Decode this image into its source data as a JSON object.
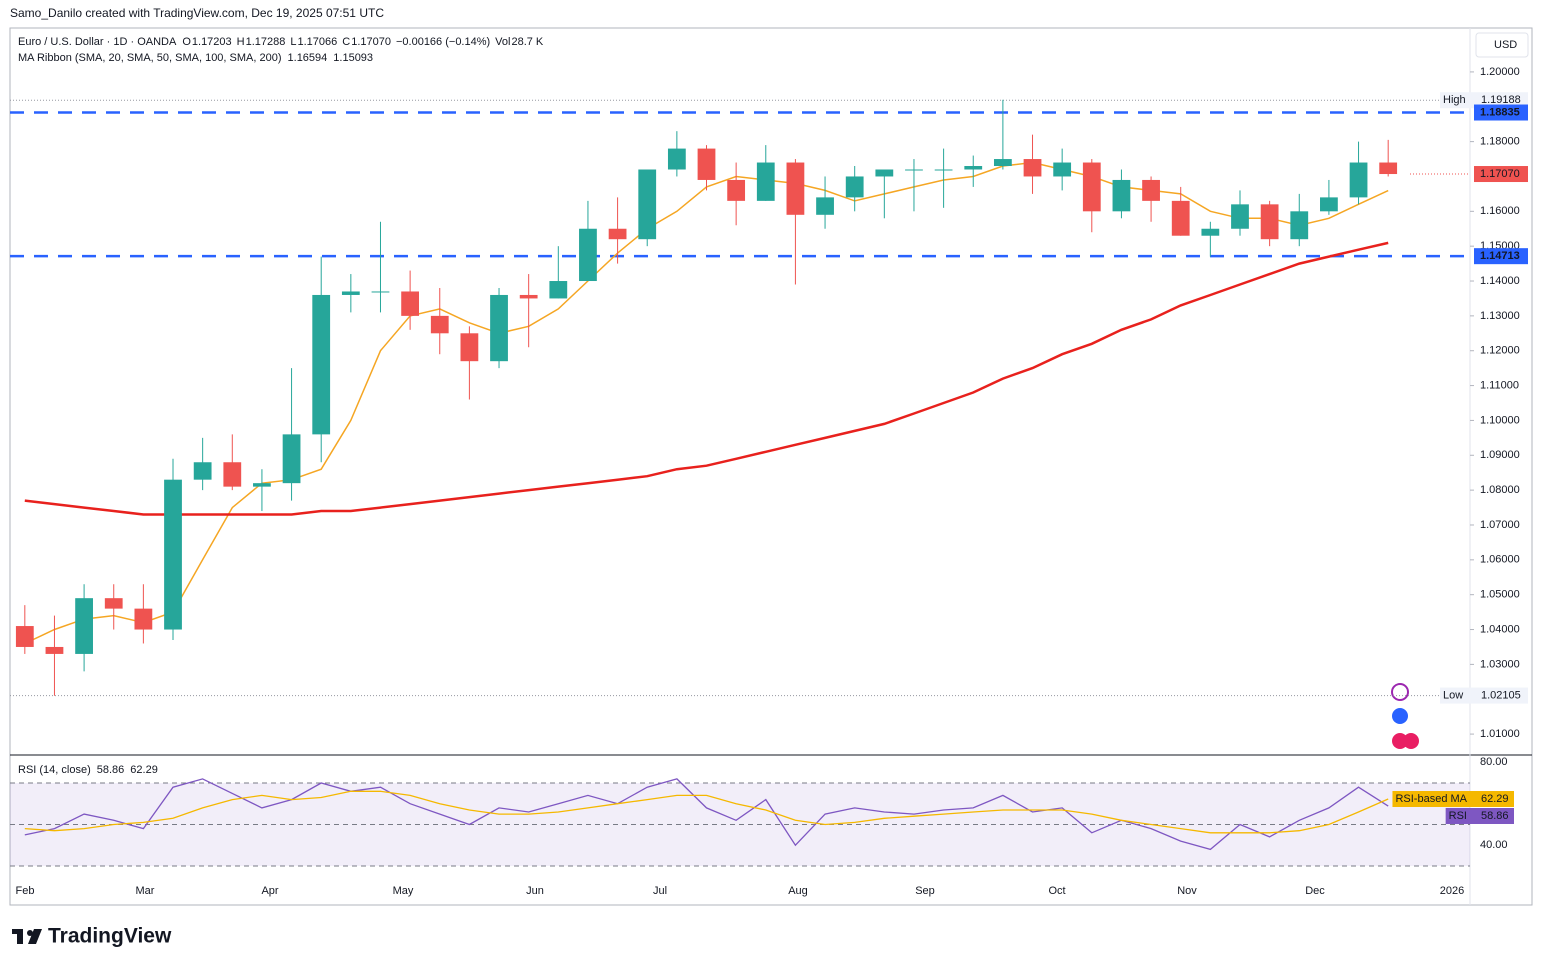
{
  "top_note": "Samo_Danilo created with TradingView.com, Dec 19, 2025 07:51 UTC",
  "currency": "USD",
  "footer": "TradingView",
  "header": {
    "symbol": "Euro / U.S. Dollar · 1D · OANDA",
    "o_key": "O",
    "o": "1.17203",
    "h_key": "H",
    "h": "1.17288",
    "l_key": "L",
    "l": "1.17066",
    "c_key": "C",
    "c": "1.17070",
    "change": "−0.00166 (−0.14%)",
    "vol_key": "Vol",
    "vol": "28.7 K",
    "ma_title": "MA Ribbon (SMA, 20, SMA, 50, SMA, 100, SMA, 200)",
    "ma_values": [
      "1.16594",
      "1.15093"
    ]
  },
  "x_labels": [
    "Feb",
    "Mar",
    "Apr",
    "May",
    "Jun",
    "Jul",
    "Aug",
    "Sep",
    "Oct",
    "Nov",
    "Dec",
    "2026"
  ],
  "chart_data": [
    {
      "type": "candlestick",
      "categories": [
        null,
        null,
        null,
        null,
        null,
        null,
        null,
        null,
        null,
        null,
        null,
        null,
        null,
        null,
        null,
        null,
        null,
        null,
        null,
        null,
        null,
        null,
        null,
        null,
        null,
        null,
        null,
        null,
        null,
        null,
        null,
        null,
        null,
        null,
        null,
        null,
        null,
        null,
        null,
        null,
        null,
        null,
        null,
        null,
        null,
        null,
        null
      ],
      "open": [
        1.041,
        1.035,
        1.033,
        1.049,
        1.046,
        1.04,
        1.083,
        1.088,
        1.081,
        1.082,
        1.096,
        1.136,
        1.137,
        1.137,
        1.13,
        1.125,
        1.117,
        1.136,
        1.135,
        1.14,
        1.155,
        1.152,
        1.172,
        1.178,
        1.169,
        1.163,
        1.174,
        1.159,
        1.164,
        1.17,
        1.172,
        1.172,
        1.172,
        1.173,
        1.175,
        1.17,
        1.174,
        1.16,
        1.169,
        1.163,
        1.153,
        1.155,
        1.162,
        1.152,
        1.16,
        1.164,
        1.174
      ],
      "high": [
        1.047,
        1.044,
        1.053,
        1.053,
        1.053,
        1.089,
        1.095,
        1.096,
        1.086,
        1.115,
        1.147,
        1.142,
        1.157,
        1.143,
        1.138,
        1.127,
        1.138,
        1.142,
        1.15,
        1.163,
        1.164,
        1.172,
        1.183,
        1.179,
        1.174,
        1.179,
        1.175,
        1.17,
        1.173,
        1.171,
        1.175,
        1.178,
        1.176,
        1.192,
        1.182,
        1.178,
        1.175,
        1.172,
        1.17,
        1.167,
        1.157,
        1.166,
        1.163,
        1.165,
        1.169,
        1.18,
        1.1805
      ],
      "low": [
        1.033,
        1.021,
        1.028,
        1.04,
        1.036,
        1.037,
        1.08,
        1.08,
        1.074,
        1.077,
        1.088,
        1.131,
        1.131,
        1.126,
        1.119,
        1.106,
        1.115,
        1.121,
        1.135,
        1.14,
        1.145,
        1.15,
        1.17,
        1.166,
        1.156,
        1.163,
        1.139,
        1.155,
        1.16,
        1.158,
        1.16,
        1.161,
        1.167,
        1.172,
        1.165,
        1.166,
        1.154,
        1.158,
        1.157,
        1.153,
        1.147,
        1.153,
        1.15,
        1.15,
        1.159,
        1.162,
        1.17
      ],
      "close": [
        1.035,
        1.033,
        1.049,
        1.046,
        1.04,
        1.083,
        1.088,
        1.081,
        1.082,
        1.096,
        1.136,
        1.137,
        1.137,
        1.13,
        1.125,
        1.117,
        1.136,
        1.135,
        1.14,
        1.155,
        1.152,
        1.172,
        1.178,
        1.169,
        1.163,
        1.174,
        1.159,
        1.164,
        1.17,
        1.172,
        1.172,
        1.172,
        1.173,
        1.175,
        1.17,
        1.174,
        1.16,
        1.169,
        1.163,
        1.153,
        1.155,
        1.162,
        1.152,
        1.16,
        1.164,
        1.174,
        1.1707
      ],
      "up_color": "#26a69a",
      "down_color": "#ef5350",
      "series": [
        {
          "color": "#f5a623",
          "values": [
            1.036,
            1.04,
            1.043,
            1.044,
            1.042,
            1.045,
            1.06,
            1.075,
            1.082,
            1.083,
            1.086,
            1.1,
            1.12,
            1.13,
            1.132,
            1.128,
            1.125,
            1.127,
            1.132,
            1.14,
            1.148,
            1.155,
            1.16,
            1.167,
            1.17,
            1.169,
            1.168,
            1.166,
            1.163,
            1.165,
            1.167,
            1.169,
            1.17,
            1.173,
            1.174,
            1.172,
            1.17,
            1.167,
            1.166,
            1.165,
            1.16,
            1.158,
            1.158,
            1.156,
            1.158,
            1.162,
            1.16594
          ]
        },
        {
          "color": "#e8211d",
          "values": [
            1.077,
            1.076,
            1.075,
            1.074,
            1.073,
            1.073,
            1.073,
            1.073,
            1.073,
            1.073,
            1.074,
            1.074,
            1.075,
            1.076,
            1.077,
            1.078,
            1.079,
            1.08,
            1.081,
            1.082,
            1.083,
            1.084,
            1.086,
            1.087,
            1.089,
            1.091,
            1.093,
            1.095,
            1.097,
            1.099,
            1.102,
            1.105,
            1.108,
            1.112,
            1.115,
            1.119,
            1.122,
            1.126,
            1.129,
            1.133,
            1.136,
            1.139,
            1.142,
            1.145,
            1.147,
            1.149,
            1.15093
          ]
        }
      ],
      "ylim": [
        1.004,
        1.2126
      ],
      "yticks": [
        {
          "value": 1.2,
          "label": "1.20000"
        },
        {
          "value": 1.18,
          "label": "1.18000"
        },
        {
          "value": 1.16,
          "label": "1.16000"
        },
        {
          "value": 1.15,
          "label": "1.15000"
        },
        {
          "value": 1.14,
          "label": "1.14000"
        },
        {
          "value": 1.13,
          "label": "1.13000"
        },
        {
          "value": 1.12,
          "label": "1.12000"
        },
        {
          "value": 1.11,
          "label": "1.11000"
        },
        {
          "value": 1.1,
          "label": "1.10000"
        },
        {
          "value": 1.09,
          "label": "1.09000"
        },
        {
          "value": 1.08,
          "label": "1.08000"
        },
        {
          "value": 1.07,
          "label": "1.07000"
        },
        {
          "value": 1.06,
          "label": "1.06000"
        },
        {
          "value": 1.05,
          "label": "1.05000"
        },
        {
          "value": 1.04,
          "label": "1.04000"
        },
        {
          "value": 1.03,
          "label": "1.03000"
        },
        {
          "value": 1.01,
          "label": "1.01000"
        }
      ],
      "high_level": {
        "label": "High",
        "value": 1.19188
      },
      "low_level": {
        "label": "Low",
        "value": 1.02105
      },
      "lines": [
        1.18835,
        1.14713
      ],
      "line_color": "#2962ff",
      "last_price": {
        "value": 1.1707,
        "label": "1.17070"
      }
    },
    {
      "type": "line",
      "title": "RSI (14, close)",
      "series": [
        {
          "name": "RSI",
          "color": "#7e57c2",
          "values": [
            45,
            48,
            55,
            52,
            48,
            68,
            72,
            65,
            58,
            62,
            70,
            66,
            68,
            60,
            55,
            50,
            58,
            56,
            60,
            64,
            60,
            68,
            72,
            58,
            52,
            62,
            40,
            55,
            58,
            56,
            55,
            57,
            58,
            64,
            56,
            58,
            46,
            52,
            48,
            42,
            38,
            50,
            44,
            52,
            58,
            68,
            58.86
          ]
        },
        {
          "name": "RSI-based MA",
          "color": "#f5b800",
          "values": [
            48,
            47,
            48,
            50,
            51,
            53,
            58,
            62,
            64,
            62,
            63,
            66,
            66,
            64,
            60,
            57,
            55,
            55,
            56,
            58,
            60,
            62,
            64,
            64,
            60,
            57,
            52,
            50,
            51,
            53,
            54,
            55,
            56,
            57,
            57,
            57,
            55,
            52,
            50,
            48,
            46,
            46,
            46,
            47,
            50,
            56,
            62.29
          ]
        }
      ],
      "ylim": [
        24.2,
        83.5
      ],
      "yticks": [
        {
          "value": 80,
          "label": "80.00"
        },
        {
          "value": 40,
          "label": "40.00"
        }
      ],
      "bands": [
        30,
        50,
        70
      ]
    }
  ]
}
